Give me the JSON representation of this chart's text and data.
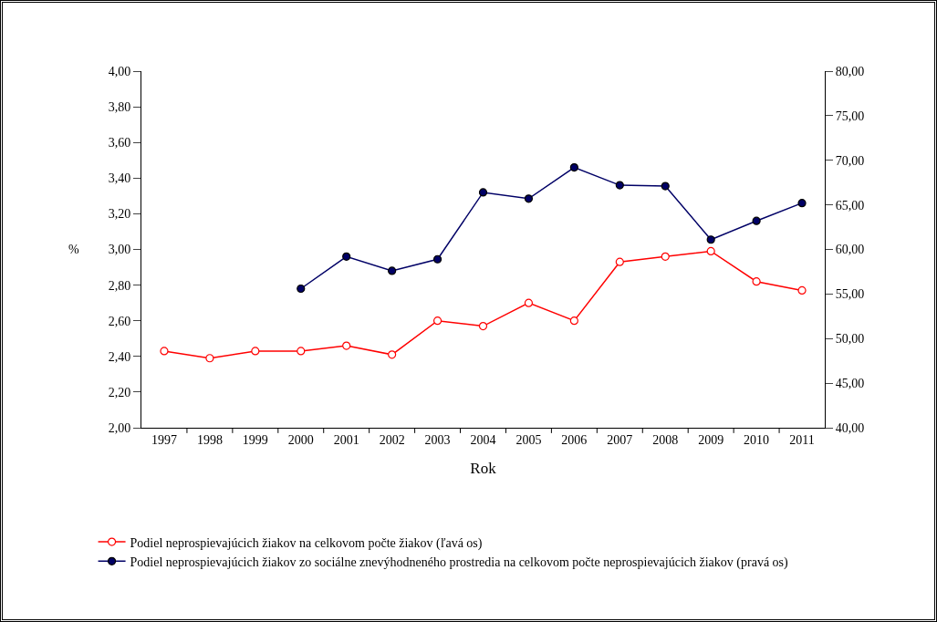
{
  "chart_data": {
    "type": "line",
    "xlabel": "Rok",
    "ylabel": "%",
    "categories": [
      "1997",
      "1998",
      "1999",
      "2000",
      "2001",
      "2002",
      "2003",
      "2004",
      "2005",
      "2006",
      "2007",
      "2008",
      "2009",
      "2010",
      "2011"
    ],
    "series": [
      {
        "name": "Podiel neprospievajúcich žiakov na celkovom počte žiakov (ľavá os)",
        "color": "#ff0000",
        "values": [
          2.43,
          2.39,
          2.43,
          2.43,
          2.46,
          2.41,
          2.6,
          2.57,
          2.7,
          2.6,
          2.93,
          2.96,
          2.99,
          2.82,
          2.77
        ]
      },
      {
        "name": "Podiel neprospievajúcich žiakov zo sociálne znevýhodneného prostredia na celkovom počte neprospievajúcich žiakov (pravá os)",
        "color": "#000066",
        "axis": "y2",
        "values": [
          null,
          null,
          null,
          55.6,
          59.2,
          57.6,
          58.9,
          66.4,
          65.7,
          69.2,
          67.2,
          67.1,
          61.1,
          63.2,
          65.2
        ]
      }
    ],
    "ylim": [
      2,
      4
    ],
    "yticks": [
      {
        "value": 2,
        "label": "2,00"
      },
      {
        "value": 2.2,
        "label": "2,20"
      },
      {
        "value": 2.4,
        "label": "2,40"
      },
      {
        "value": 2.6,
        "label": "2,60"
      },
      {
        "value": 2.8,
        "label": "2,80"
      },
      {
        "value": 3,
        "label": "3,00"
      },
      {
        "value": 3.2,
        "label": "3,20"
      },
      {
        "value": 3.4,
        "label": "3,40"
      },
      {
        "value": 3.6,
        "label": "3,60"
      },
      {
        "value": 3.8,
        "label": "3,80"
      },
      {
        "value": 4,
        "label": "4,00"
      }
    ],
    "y2lim": [
      40,
      80
    ],
    "y2ticks": [
      {
        "value": 40,
        "label": "40,00"
      },
      {
        "value": 45,
        "label": "45,00"
      },
      {
        "value": 50,
        "label": "50,00"
      },
      {
        "value": 55,
        "label": "55,00"
      },
      {
        "value": 60,
        "label": "60,00"
      },
      {
        "value": 65,
        "label": "65,00"
      },
      {
        "value": 70,
        "label": "70,00"
      },
      {
        "value": 75,
        "label": "75,00"
      },
      {
        "value": 80,
        "label": "80,00"
      }
    ],
    "grid": false,
    "legend": "bottom",
    "marker": "circle",
    "line_style": "solid"
  }
}
